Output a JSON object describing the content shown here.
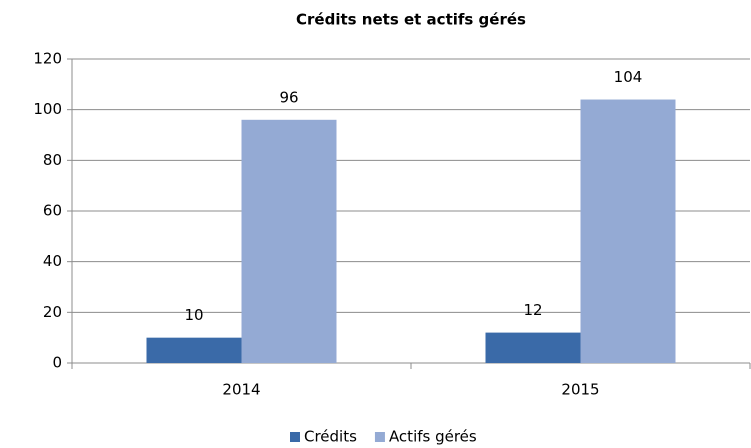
{
  "chart_data": {
    "type": "bar",
    "title": "Crédits nets et actifs gérés",
    "categories": [
      "2014",
      "2015"
    ],
    "series": [
      {
        "name": "Crédits",
        "color": "#3a6aa8",
        "values": [
          10,
          12
        ]
      },
      {
        "name": "Actifs gérés",
        "color": "#94aad4",
        "values": [
          96,
          104
        ]
      }
    ],
    "ylim": [
      0,
      120
    ],
    "yticks": [
      0,
      20,
      40,
      60,
      80,
      100,
      120
    ],
    "grid": true,
    "legend": "bottom"
  }
}
